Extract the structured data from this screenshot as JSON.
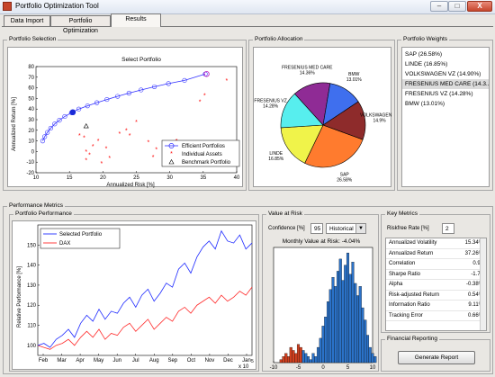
{
  "window": {
    "title": "Portfolio Optimization Tool",
    "minimize": "–",
    "maximize": "□",
    "close": "X"
  },
  "tabs": [
    {
      "label": "Data Import"
    },
    {
      "label": "Portfolio Optimization"
    },
    {
      "label": "Results"
    }
  ],
  "portfolio_selection": {
    "title": "Portfolio Selection",
    "chart_data": {
      "type": "scatter",
      "title": "Select Portfolio",
      "xlabel": "Annualized Risk [%]",
      "ylabel": "Annualized Return [%]",
      "xlim": [
        10,
        40
      ],
      "ylim": [
        -20,
        80
      ],
      "xticks": [
        10,
        15,
        20,
        25,
        30,
        35,
        40
      ],
      "yticks": [
        -20,
        -10,
        0,
        10,
        20,
        30,
        40,
        50,
        60,
        70,
        80
      ],
      "series": [
        {
          "name": "Efficient Portfolios",
          "color": "#3030ff",
          "x": [
            11,
            11.3,
            11.7,
            12.2,
            12.8,
            13.5,
            14.3,
            15.3,
            16.4,
            17.7,
            19.1,
            20.6,
            22.2,
            23.9,
            25.7,
            27.7,
            29.8,
            32.2,
            35.3
          ],
          "y": [
            10,
            14,
            18,
            22,
            26,
            29.5,
            33,
            36.5,
            40,
            43,
            46,
            49,
            52,
            55,
            58,
            61,
            64,
            67,
            73
          ]
        },
        {
          "name": "Individual Assets",
          "color": "#ff0000",
          "x": [
            16.5,
            17.2,
            18.5,
            17.5,
            19.3,
            18,
            20.5,
            21,
            23.5,
            22.5,
            25,
            24,
            26.8,
            28,
            29.5,
            30,
            31,
            33.5,
            35.2,
            34.5,
            38.5,
            17.5,
            19.8,
            27.5
          ],
          "y": [
            15,
            13,
            5,
            0,
            10,
            -3,
            3,
            -6,
            20,
            17,
            28,
            15,
            9,
            2,
            7,
            2,
            10,
            2,
            53,
            47,
            67,
            -8,
            -11,
            -5
          ]
        },
        {
          "name": "Benchmark Portfolio",
          "color": "#000000",
          "x": [
            17.5
          ],
          "y": [
            24
          ]
        }
      ],
      "selected": {
        "x": [
          15.5
        ],
        "y": [
          37
        ]
      },
      "highlight": {
        "x": [
          35.5
        ],
        "y": [
          73
        ]
      }
    }
  },
  "portfolio_allocation": {
    "title": "Portfolio Allocation",
    "chart_data": {
      "type": "pie",
      "slices": [
        {
          "label": "SAP",
          "value": 26.58,
          "text": "26.58%",
          "color": "#ff7b2e"
        },
        {
          "label": "LINDE",
          "value": 16.85,
          "text": "16.85%",
          "color": "#f0f34a"
        },
        {
          "label": "FRESENIUS VZ",
          "value": 14.28,
          "text": "14.28%",
          "color": "#57eeee"
        },
        {
          "label": "FRESENIUS MED CARE",
          "value": 14.36,
          "text": "14.36%",
          "color": "#8f2b95"
        },
        {
          "label": "BMW",
          "value": 13.01,
          "text": "13.01%",
          "color": "#3f6fee"
        },
        {
          "label": "VOLKSWAGEN VZ",
          "value": 14.9,
          "text": "14.9%",
          "color": "#8e2b2b"
        }
      ]
    }
  },
  "portfolio_weights": {
    "title": "Portfolio Weights",
    "items": [
      {
        "text": "SAP (26.58%)"
      },
      {
        "text": "LINDE (16.85%)"
      },
      {
        "text": "VOLKSWAGEN VZ (14.90%)"
      },
      {
        "text": "FRESENIUS MED CARE (14.3..."
      },
      {
        "text": "FRESENIUS VZ (14.28%)"
      },
      {
        "text": "BMW (13.01%)"
      }
    ]
  },
  "performance_metrics": {
    "title": "Performance Metrics",
    "portfolio_performance": {
      "title": "Portfolio Performance",
      "chart_data": {
        "type": "line",
        "ylabel": "Relative Performance [%]",
        "ylim": [
          95,
          160
        ],
        "yticks": [
          100,
          110,
          120,
          130,
          140,
          150
        ],
        "xtick_labels": [
          "Feb",
          "Mar",
          "Apr",
          "May",
          "Jun",
          "Jul",
          "Aug",
          "Sep",
          "Oct",
          "Nov",
          "Dec",
          "Jan"
        ],
        "x_multiplier": "x 10",
        "x_multiplier_exp": "5",
        "series": [
          {
            "name": "Selected Portfolio",
            "color": "#1f2bff",
            "values": [
              100,
              101,
              99,
              103,
              105,
              108,
              104,
              111,
              115,
              112,
              118,
              113,
              117,
              116,
              121,
              124,
              119,
              125,
              128,
              122,
              126,
              131,
              129,
              138,
              141,
              136,
              144,
              149,
              152,
              148,
              157,
              152,
              151,
              155,
              148,
              151
            ]
          },
          {
            "name": "DAX",
            "color": "#ff2a2a",
            "values": [
              100,
              99,
              98,
              100,
              101,
              103,
              100,
              104,
              107,
              104,
              108,
              103,
              106,
              105,
              109,
              111,
              107,
              110,
              113,
              108,
              111,
              114,
              112,
              117,
              119,
              116,
              120,
              122,
              124,
              121,
              125,
              122,
              124,
              127,
              125,
              129
            ]
          }
        ]
      }
    },
    "value_at_risk": {
      "title": "Value at Risk",
      "confidence_label": "Confidence [%]",
      "confidence_value": "95",
      "method": "Historical",
      "chart_data": {
        "type": "bar",
        "title": "Monthly Value at Risk: -4.04%",
        "xlim": [
          -10,
          10
        ],
        "xticks": [
          -10,
          -5,
          0,
          5,
          10
        ],
        "var_threshold": -4.04,
        "bins_x": [
          -8.5,
          -8,
          -7.5,
          -7,
          -6.5,
          -6,
          -5.5,
          -5,
          -4.5,
          -4,
          -3.5,
          -3,
          -2.5,
          -2,
          -1.5,
          -1,
          -0.5,
          0,
          0.5,
          1,
          1.5,
          2,
          2.5,
          3,
          3.5,
          4,
          4.5,
          5,
          5.5,
          6,
          6.5,
          7,
          7.5,
          8,
          8.5,
          9,
          9.5,
          10,
          10.5
        ],
        "bins_y": [
          1,
          2,
          3,
          2,
          5,
          4,
          3,
          6,
          5,
          4,
          3,
          2,
          1,
          3,
          2,
          5,
          8,
          12,
          15,
          20,
          24,
          28,
          25,
          30,
          34,
          27,
          32,
          36,
          29,
          33,
          26,
          22,
          25,
          18,
          14,
          9,
          5,
          3,
          2
        ],
        "colors": {
          "tail": "#d2401f",
          "body": "#2b72c8"
        }
      }
    },
    "key_metrics": {
      "title": "Key Metrics",
      "riskfree_label": "Riskfree Rate [%]",
      "riskfree_value": "2",
      "rows": [
        {
          "name": "Annualized Volatility",
          "value": "15.34%"
        },
        {
          "name": "Annualized Return",
          "value": "37.26%"
        },
        {
          "name": "Correlation",
          "value": "0.96"
        },
        {
          "name": "Sharpe Ratio",
          "value": "-1.75"
        },
        {
          "name": "Alpha",
          "value": "-0.38%"
        },
        {
          "name": "Risk-adjusted Return",
          "value": "0.54%"
        },
        {
          "name": "Information Ratio",
          "value": "9.11%"
        },
        {
          "name": "Tracking Error",
          "value": "0.66%"
        }
      ]
    },
    "financial_reporting": {
      "title": "Financial Reporting",
      "button": "Generate Report"
    }
  }
}
